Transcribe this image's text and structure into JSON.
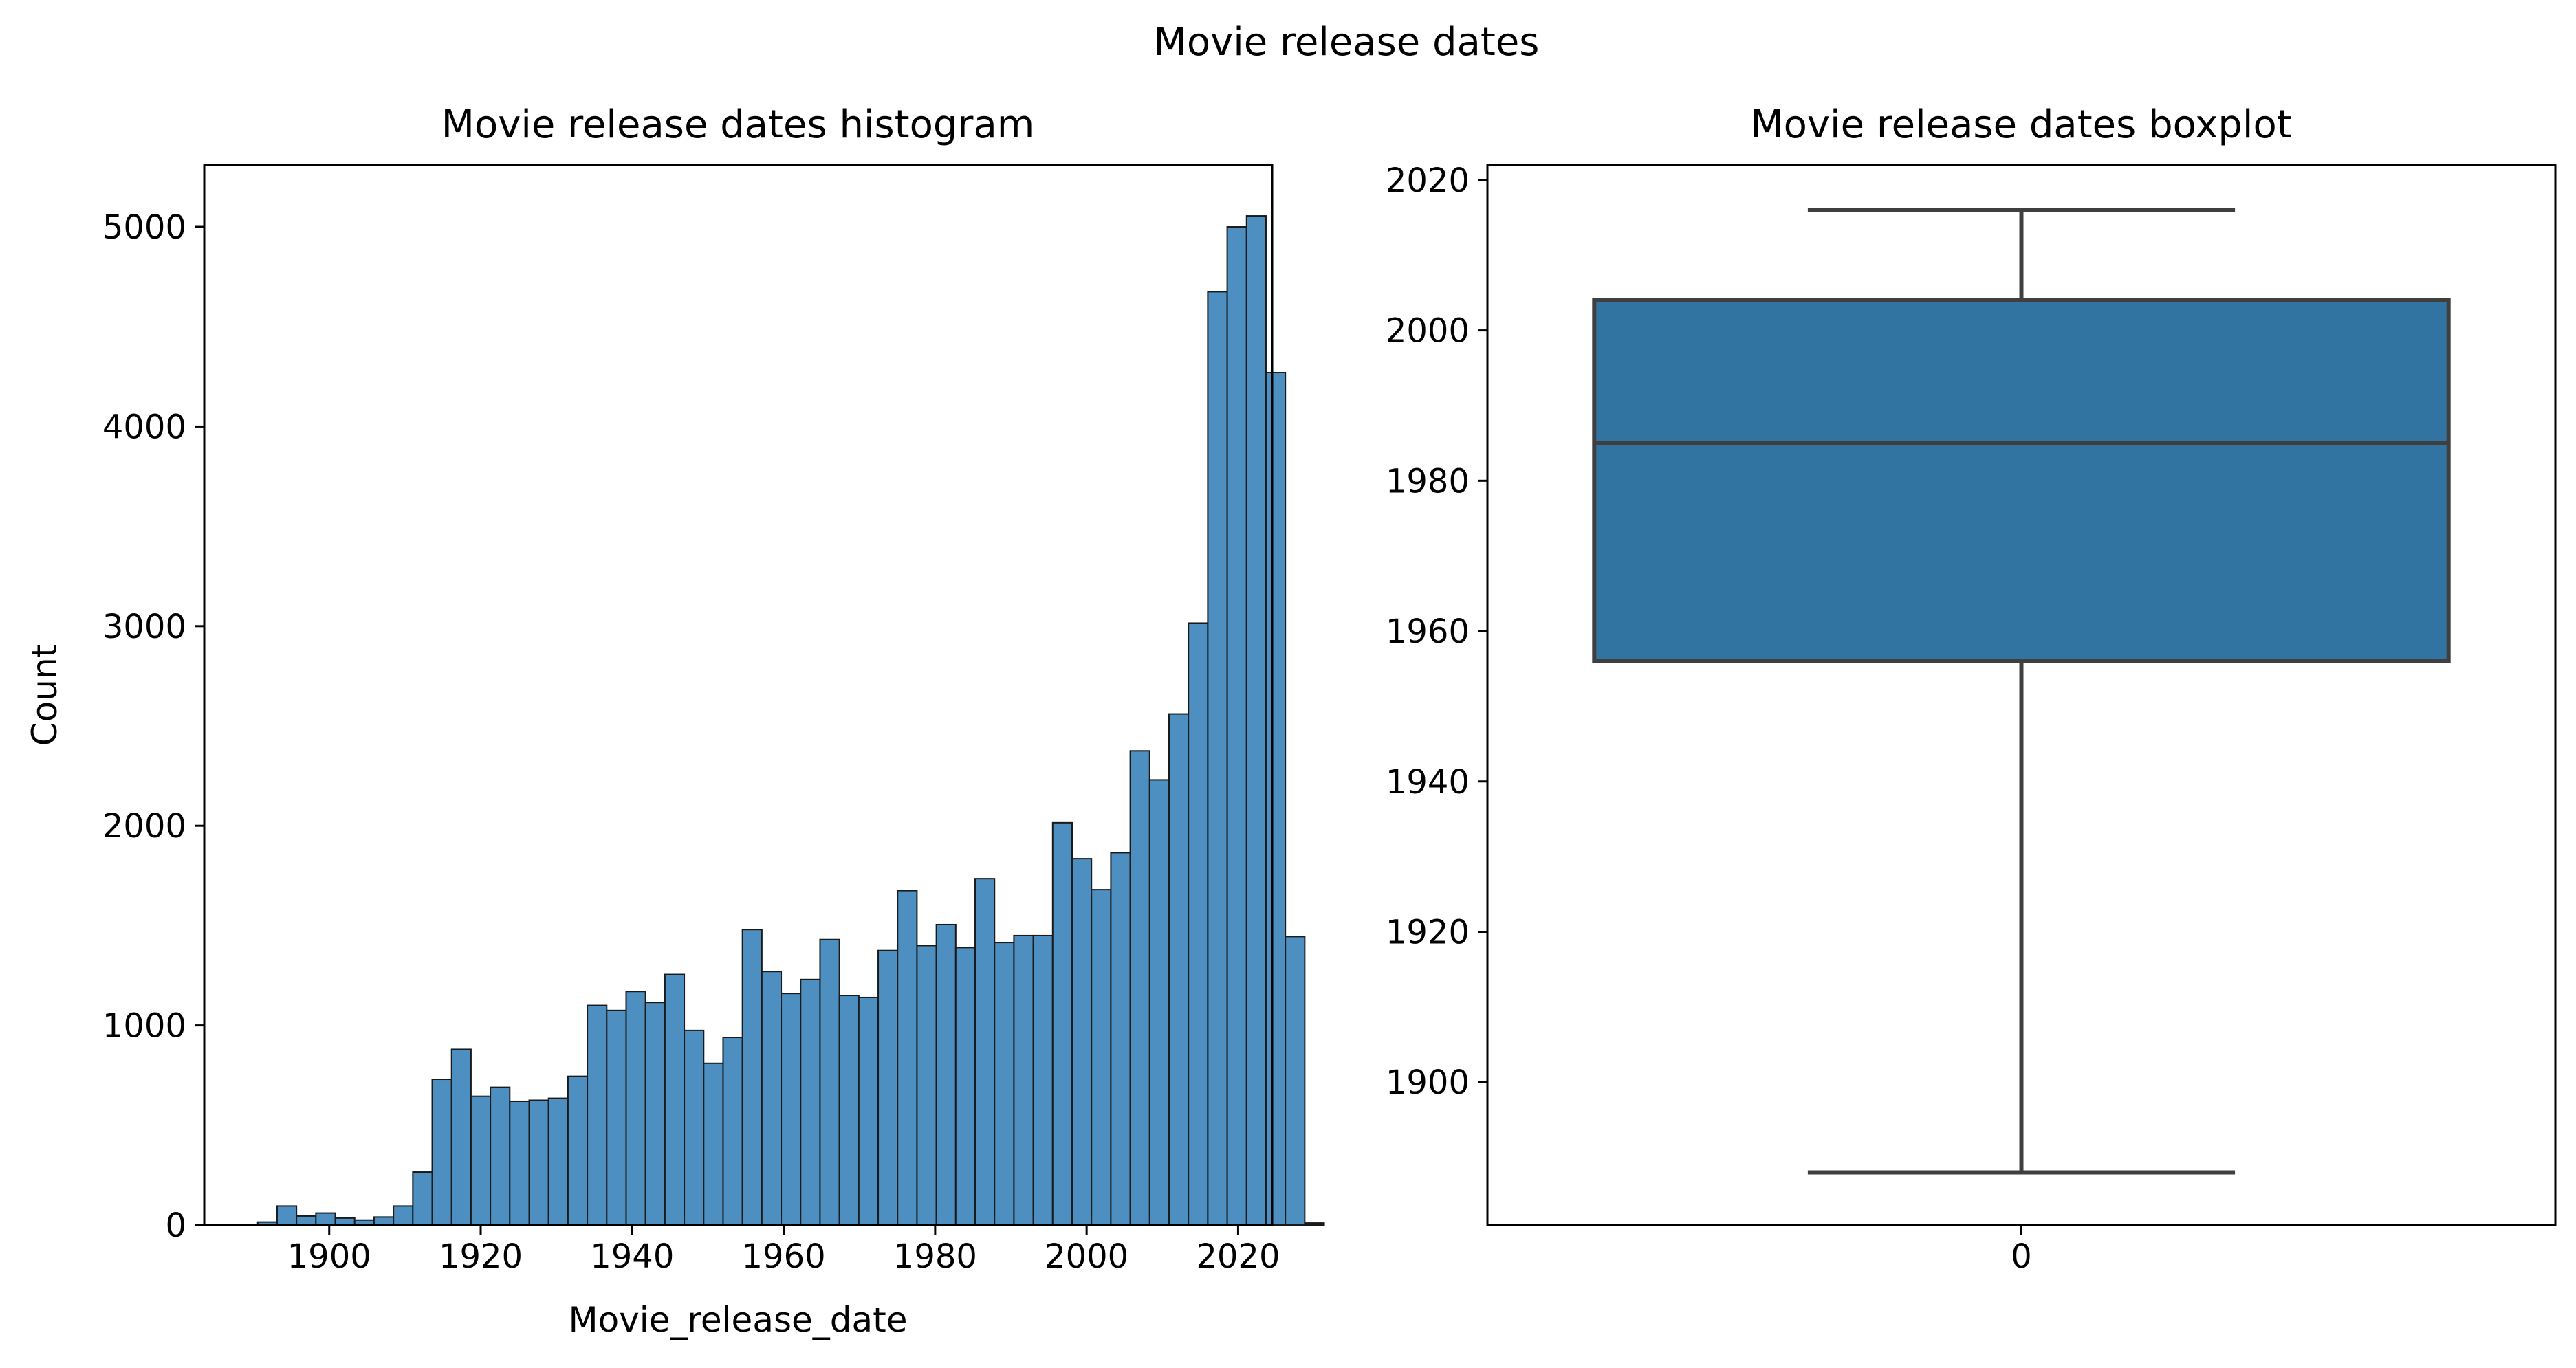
{
  "suptitle": "Movie release dates",
  "chart_data": [
    {
      "type": "bar",
      "subtype": "histogram",
      "title": "Movie release dates histogram",
      "xlabel": "Movie_release_date",
      "ylabel": "Count",
      "xlim": [
        1883.5,
        2024.5
      ],
      "ylim": [
        0,
        5310
      ],
      "xticks": [
        "1900",
        "1920",
        "1940",
        "1960",
        "1980",
        "2000",
        "2020"
      ],
      "yticks": [
        "0",
        "1000",
        "2000",
        "3000",
        "4000",
        "5000"
      ],
      "grid": false,
      "bar_color": "#4c8fc0",
      "bin_start": 1888,
      "bin_width": 2.56,
      "values": [
        0,
        15,
        95,
        45,
        60,
        35,
        25,
        40,
        95,
        265,
        730,
        880,
        645,
        690,
        620,
        625,
        635,
        745,
        1100,
        1075,
        1170,
        1115,
        1255,
        975,
        810,
        940,
        1480,
        1270,
        1160,
        1230,
        1430,
        1150,
        1140,
        1375,
        1675,
        1400,
        1505,
        1390,
        1735,
        1415,
        1450,
        1450,
        2015,
        1835,
        1680,
        1865,
        2375,
        2230,
        2560,
        3015,
        4675,
        5000,
        5055,
        4270,
        1445,
        10
      ]
    },
    {
      "type": "box",
      "title": "Movie release dates boxplot",
      "categories": [
        "0"
      ],
      "yticks": [
        "1900",
        "1920",
        "1940",
        "1960",
        "1980",
        "2000",
        "2020"
      ],
      "ylim": [
        1881,
        2022
      ],
      "whisker_low": 1888,
      "q1": 1956,
      "median": 1985,
      "q3": 2004,
      "whisker_high": 2016,
      "grid": false,
      "box_color": "#3274a1",
      "line_color": "#3f3f3f"
    }
  ]
}
